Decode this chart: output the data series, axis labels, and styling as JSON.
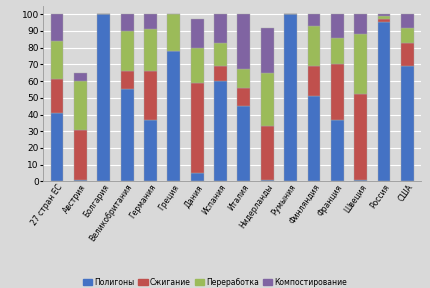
{
  "categories": [
    "27 стран ЕС",
    "Австрия",
    "Болгария",
    "Великобритания",
    "Германия",
    "Греция",
    "Дания",
    "Испания",
    "Италия",
    "Нидерланды",
    "Румыния",
    "Финляндия",
    "Франция",
    "Швеция",
    "Россия",
    "США"
  ],
  "polygony": [
    41,
    1,
    100,
    55,
    37,
    78,
    5,
    60,
    45,
    1,
    100,
    51,
    37,
    1,
    95,
    69
  ],
  "szhiganie": [
    20,
    30,
    0,
    11,
    29,
    0,
    54,
    9,
    11,
    32,
    0,
    18,
    33,
    51,
    2,
    14
  ],
  "pererabotka": [
    23,
    29,
    0,
    24,
    25,
    22,
    21,
    14,
    11,
    32,
    0,
    24,
    16,
    36,
    2,
    9
  ],
  "kompostirovanie": [
    16,
    5,
    0,
    10,
    9,
    0,
    17,
    17,
    33,
    27,
    0,
    7,
    14,
    12,
    1,
    8
  ],
  "colors": {
    "polygony": "#4472C4",
    "szhiganie": "#C0504D",
    "pererabotka": "#9BBB59",
    "kompostirovanie": "#8064A2"
  },
  "legend_labels": [
    "Полигоны",
    "Сжигание",
    "Переработка",
    "Компостирование"
  ],
  "ylim": [
    0,
    105
  ],
  "yticks": [
    0,
    10,
    20,
    30,
    40,
    50,
    60,
    70,
    80,
    90,
    100
  ],
  "background_color": "#D9D9D9",
  "plot_bg_color": "#D9D9D9",
  "grid_color": "#FFFFFF",
  "bar_edge_color": "#AAAAAA"
}
